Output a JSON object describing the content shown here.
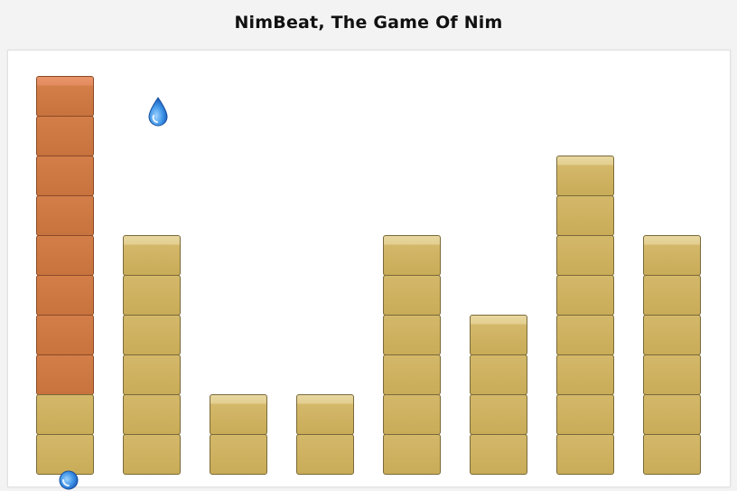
{
  "title": "NimBeat, The Game Of Nim",
  "colors": {
    "block": "#cdb05f",
    "block_top": "#e6d49a",
    "selected_block": "#cd7840",
    "background": "#f4f3f3"
  },
  "columns": [
    {
      "height": 10,
      "selected": 8
    },
    {
      "height": 6,
      "selected": 0
    },
    {
      "height": 2,
      "selected": 0
    },
    {
      "height": 2,
      "selected": 0
    },
    {
      "height": 6,
      "selected": 0
    },
    {
      "height": 4,
      "selected": 0
    },
    {
      "height": 8,
      "selected": 0
    },
    {
      "height": 6,
      "selected": 0
    }
  ],
  "icons": {
    "drop": "water-drop-icon"
  }
}
